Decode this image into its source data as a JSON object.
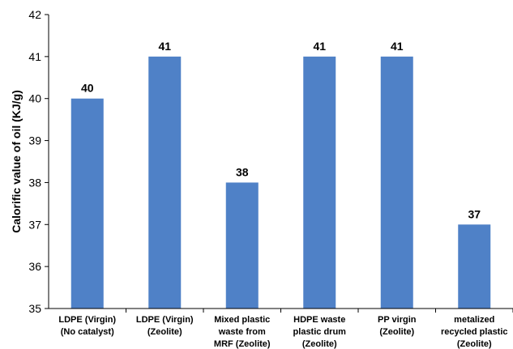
{
  "chart_data": {
    "type": "bar",
    "categories": [
      [
        "LDPE (Virgin)",
        "(No catalyst)"
      ],
      [
        "LDPE (Virgin)",
        "(Zeolite)"
      ],
      [
        "Mixed plastic",
        "waste from",
        "MRF (Zeolite)"
      ],
      [
        "HDPE waste",
        "plastic drum",
        "(Zeolite)"
      ],
      [
        "PP virgin",
        "(Zeolite)"
      ],
      [
        "metalized",
        "recycled plastic",
        "(Zeolite)"
      ]
    ],
    "values": [
      40,
      41,
      38,
      41,
      41,
      37
    ],
    "data_labels": [
      "40",
      "41",
      "38",
      "41",
      "41",
      "37"
    ],
    "ylabel": "Calorific value of oil (KJ/g)",
    "ylim": [
      35,
      42
    ],
    "yticks": [
      35,
      36,
      37,
      38,
      39,
      40,
      41,
      42
    ],
    "grid": false,
    "bar_color": "#4f81c7"
  }
}
